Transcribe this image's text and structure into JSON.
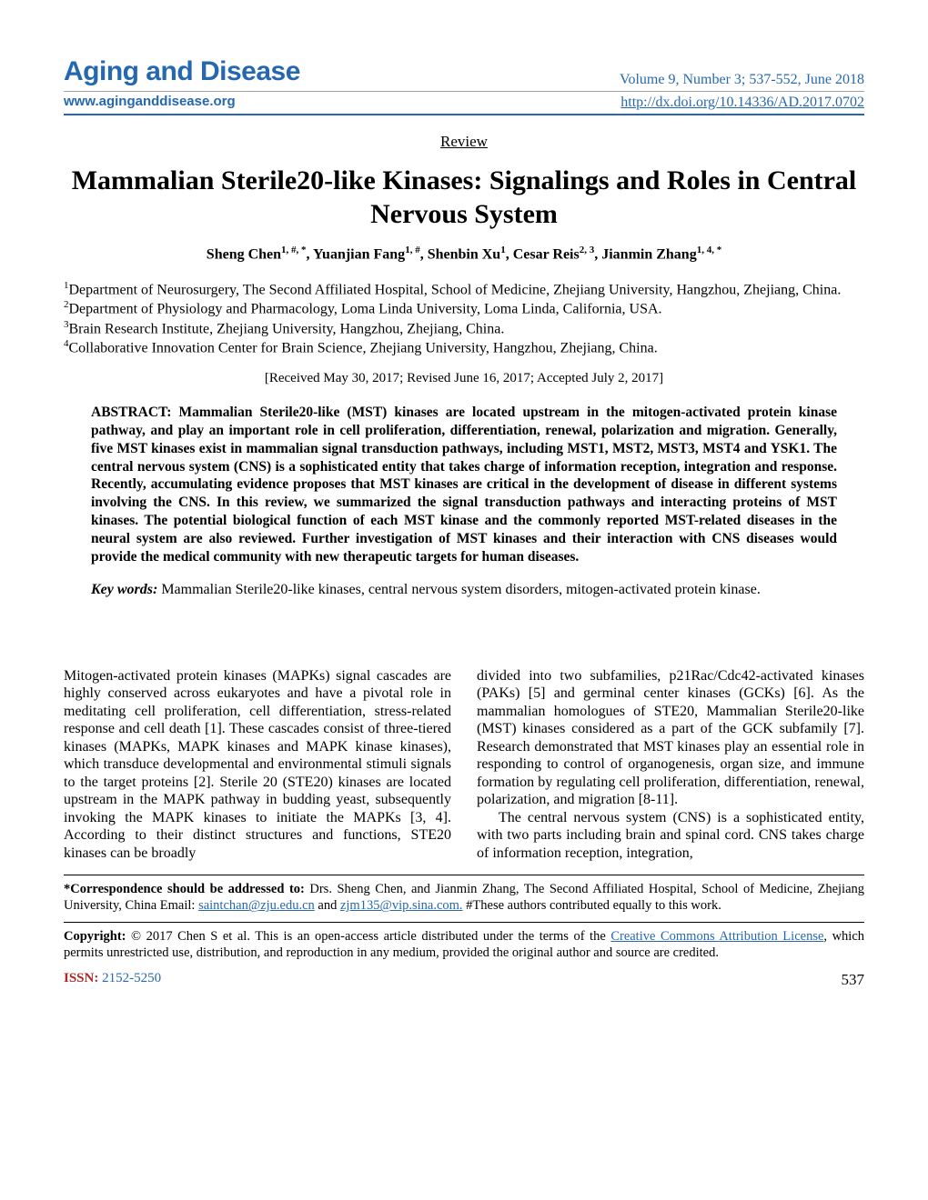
{
  "header": {
    "journal_title": "Aging and Disease",
    "issue_info": "Volume 9, Number 3; 537-552, June 2018",
    "website": "www.aginganddisease.org",
    "doi": "http://dx.doi.org/10.14336/AD.2017.0702"
  },
  "section_label": "Review",
  "title": "Mammalian Sterile20-like Kinases: Signalings and Roles in Central Nervous System",
  "authors_html": "Sheng Chen<sup>1, #, *</sup>, Yuanjian Fang<sup>1, #</sup>, Shenbin Xu<sup>1</sup>, Cesar Reis<sup>2, 3</sup>, Jianmin Zhang<sup>1, 4, *</sup>",
  "affiliations": [
    {
      "num": "1",
      "text": "Department of Neurosurgery, The Second Affiliated Hospital, School of Medicine, Zhejiang University, Hangzhou, Zhejiang, China."
    },
    {
      "num": "2",
      "text": "Department of Physiology and Pharmacology, Loma Linda University, Loma Linda, California, USA."
    },
    {
      "num": "3",
      "text": "Brain Research Institute, Zhejiang University, Hangzhou, Zhejiang, China."
    },
    {
      "num": "4",
      "text": "Collaborative Innovation Center for Brain Science, Zhejiang University, Hangzhou, Zhejiang, China."
    }
  ],
  "dates": "[Received May 30, 2017; Revised June 16, 2017; Accepted July 2, 2017]",
  "abstract_label": "ABSTRACT:",
  "abstract": "Mammalian Sterile20-like (MST) kinases are located upstream in the mitogen-activated protein kinase pathway, and play an important role in cell proliferation, differentiation, renewal, polarization and migration. Generally, five MST kinases exist in mammalian signal transduction pathways, including MST1, MST2, MST3, MST4 and YSK1. The central nervous system (CNS) is a sophisticated entity that takes charge of information reception, integration and response. Recently, accumulating evidence proposes that MST kinases are critical in the development of disease in different systems involving the CNS. In this review, we summarized the signal transduction pathways and interacting proteins of MST kinases. The potential biological function of each MST kinase and the commonly reported MST-related diseases in the neural system are also reviewed. Further investigation of MST kinases and their interaction with CNS diseases would provide the medical community with new therapeutic targets for human diseases.",
  "keywords": {
    "label": "Key words:",
    "text": "Mammalian Sterile20-like kinases, central nervous system disorders, mitogen-activated protein kinase."
  },
  "body": {
    "col1": "Mitogen-activated protein kinases (MAPKs) signal cascades are highly conserved across eukaryotes and have a pivotal role in meditating cell proliferation, cell differentiation, stress-related response and cell death [1]. These cascades consist of three-tiered kinases (MAPKs, MAPK kinases and MAPK kinase kinases), which transduce developmental and environmental stimuli signals to the target proteins [2]. Sterile 20 (STE20) kinases are located upstream in the MAPK pathway in budding yeast, subsequently invoking the MAPK kinases to initiate the MAPKs [3, 4]. According to their distinct structures and functions, STE20 kinases can be broadly",
    "col2_p1": "divided into two subfamilies, p21Rac/Cdc42-activated kinases (PAKs) [5] and germinal center kinases (GCKs) [6]. As the mammalian homologues of STE20, Mammalian Sterile20-like (MST) kinases considered as a part of the GCK subfamily [7]. Research demonstrated that MST kinases play an essential role in responding to control of organogenesis, organ size, and immune formation by regulating cell proliferation, differentiation, renewal, polarization, and migration [8-11].",
    "col2_p2": "The central nervous system (CNS) is a sophisticated entity, with two parts including brain and spinal cord. CNS takes charge of information reception, integration,"
  },
  "correspondence": {
    "label": "*Correspondence should be addressed to:",
    "text_before": " Drs. Sheng Chen, and Jianmin Zhang, The Second Affiliated Hospital, School of Medicine, Zhejiang University, China Email: ",
    "email1": "saintchan@zju.edu.cn",
    "and": " and ",
    "email2": "zjm135@vip.sina.com.",
    "text_after": " #These authors contributed equally to this work."
  },
  "copyright": {
    "label": "Copyright:",
    "text_before": " © 2017 Chen S et al. This is an open-access article distributed under the terms of the ",
    "link": "Creative Commons Attribution License",
    "text_after": ", which permits unrestricted use, distribution, and reproduction in any medium, provided the original author and source are credited."
  },
  "footer": {
    "issn_label": "ISSN:",
    "issn_value": " 2152-5250",
    "page_number": "537"
  },
  "colors": {
    "brand_blue": "#2668b0",
    "issn_red": "#b02626"
  }
}
